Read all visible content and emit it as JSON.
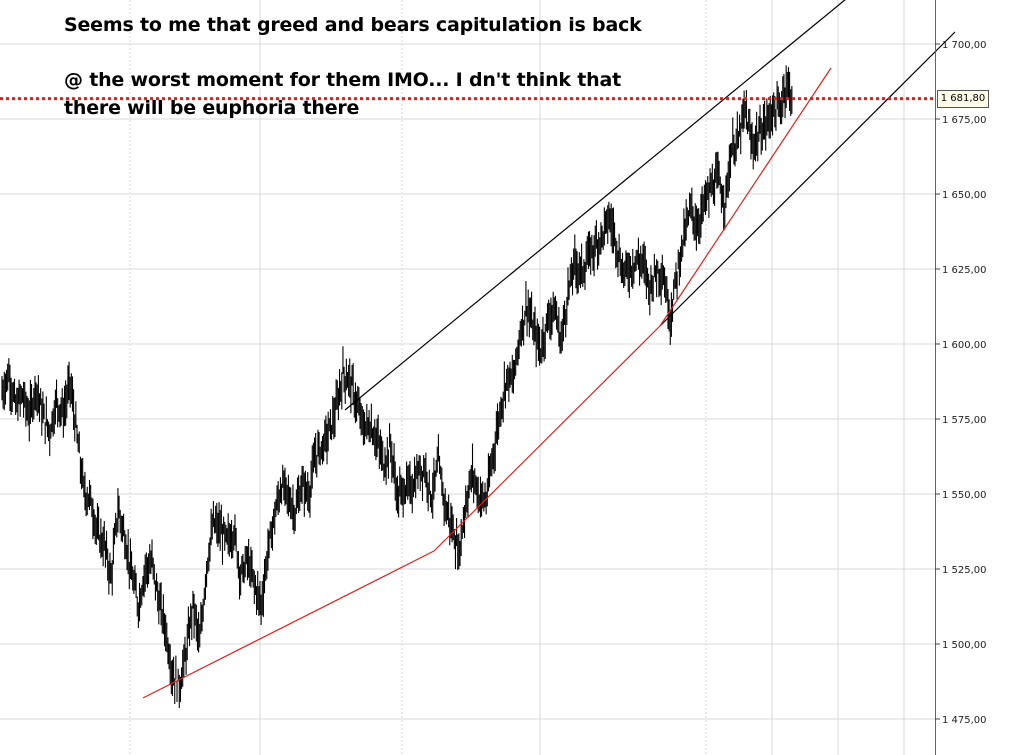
{
  "annotation": {
    "line1": "Seems to me that greed and bears capitulation is back",
    "line2": "@ the worst moment for them IMO... I dn't think that",
    "line3": "there will be euphoria there"
  },
  "current_price_label": "1 681,80",
  "colors": {
    "candle": "#000000",
    "trendline_black": "#000000",
    "trendline_red": "#e0201b",
    "price_line": "#e0201b",
    "grid": "#d9d9d9"
  },
  "chart_data": {
    "type": "line",
    "title": "",
    "xlabel": "",
    "ylabel": "",
    "ylim": [
      1466,
      1720
    ],
    "y_ticks": [
      "1 475,00",
      "1 500,00",
      "1 525,00",
      "1 550,00",
      "1 575,00",
      "1 600,00",
      "1 625,00",
      "1 650,00",
      "1 675,00",
      "1 700,00"
    ],
    "y_tick_values": [
      1475,
      1500,
      1525,
      1550,
      1575,
      1600,
      1625,
      1650,
      1675,
      1700
    ],
    "grid": true,
    "current_price": 1681.8,
    "series": [
      {
        "values": [
          1584,
          1590,
          1579,
          1583,
          1576,
          1586,
          1576,
          1571,
          1581,
          1577,
          1587,
          1569,
          1551,
          1548,
          1537,
          1533,
          1522,
          1545,
          1536,
          1523,
          1513,
          1525,
          1527,
          1514,
          1505,
          1490,
          1486,
          1497,
          1513,
          1500,
          1526,
          1540,
          1538,
          1534,
          1538,
          1523,
          1528,
          1520,
          1513,
          1531,
          1543,
          1553,
          1549,
          1544,
          1553,
          1550,
          1563,
          1566,
          1571,
          1578,
          1590,
          1588,
          1580,
          1572,
          1573,
          1568,
          1560,
          1566,
          1549,
          1552,
          1552,
          1557,
          1559,
          1549,
          1560,
          1546,
          1539,
          1530,
          1547,
          1557,
          1549,
          1548,
          1563,
          1577,
          1589,
          1588,
          1604,
          1613,
          1604,
          1598,
          1608,
          1612,
          1601,
          1617,
          1627,
          1624,
          1629,
          1633,
          1636,
          1642,
          1635,
          1624,
          1625,
          1628,
          1627,
          1619,
          1625,
          1623,
          1609,
          1624,
          1636,
          1645,
          1639,
          1647,
          1652,
          1655,
          1647,
          1665,
          1668,
          1678,
          1666,
          1670,
          1673,
          1678,
          1678,
          1687,
          1682
        ]
      }
    ],
    "trendlines": [
      {
        "color": "black",
        "from": [
          345,
          1578
        ],
        "to": [
          868,
          1721
        ]
      },
      {
        "color": "black",
        "from": [
          660,
          1606
        ],
        "to": [
          955,
          1704
        ]
      },
      {
        "color": "red",
        "from": [
          143,
          1482
        ],
        "to": [
          434,
          1531
        ]
      },
      {
        "color": "red",
        "from": [
          434,
          1531
        ],
        "to": [
          660,
          1606
        ]
      },
      {
        "color": "red",
        "from": [
          660,
          1606
        ],
        "to": [
          831,
          1692
        ]
      }
    ]
  }
}
